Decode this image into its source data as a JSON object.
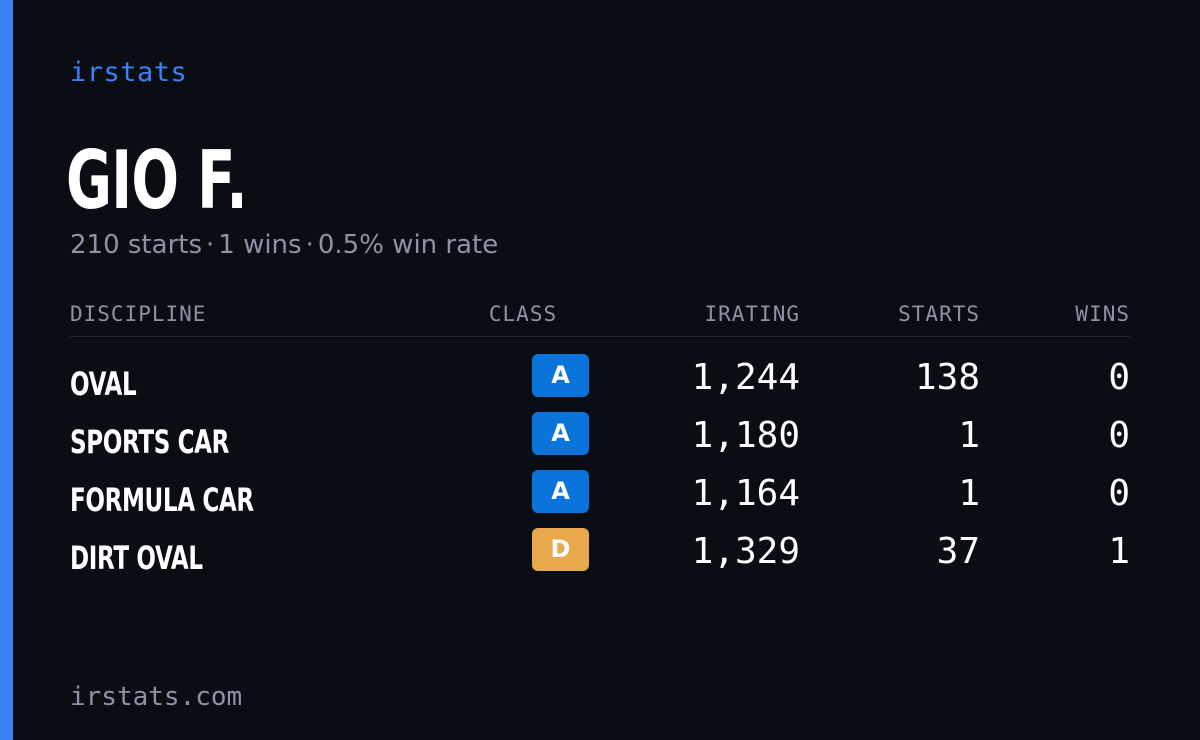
{
  "brand": {
    "logo_text": "irstats",
    "accent_color": "#3b82f6",
    "background_color": "#0b0d14"
  },
  "profile": {
    "name": "GIO F.",
    "summary": {
      "starts": "210 starts",
      "wins": "1 wins",
      "win_rate": "0.5% win rate",
      "separator": "·"
    }
  },
  "table": {
    "headers": {
      "discipline": "DISCIPLINE",
      "class": "CLASS",
      "irating": "IRATING",
      "starts": "STARTS",
      "wins": "WINS"
    },
    "rows": [
      {
        "discipline": "OVAL",
        "class": "A",
        "class_color": "#0a74da",
        "irating": "1,244",
        "starts": "138",
        "wins": "0"
      },
      {
        "discipline": "SPORTS CAR",
        "class": "A",
        "class_color": "#0a74da",
        "irating": "1,180",
        "starts": "1",
        "wins": "0"
      },
      {
        "discipline": "FORMULA CAR",
        "class": "A",
        "class_color": "#0a74da",
        "irating": "1,164",
        "starts": "1",
        "wins": "0"
      },
      {
        "discipline": "DIRT OVAL",
        "class": "D",
        "class_color": "#e8a94c",
        "irating": "1,329",
        "starts": "37",
        "wins": "1"
      }
    ]
  },
  "footer": {
    "url": "irstats.com"
  }
}
